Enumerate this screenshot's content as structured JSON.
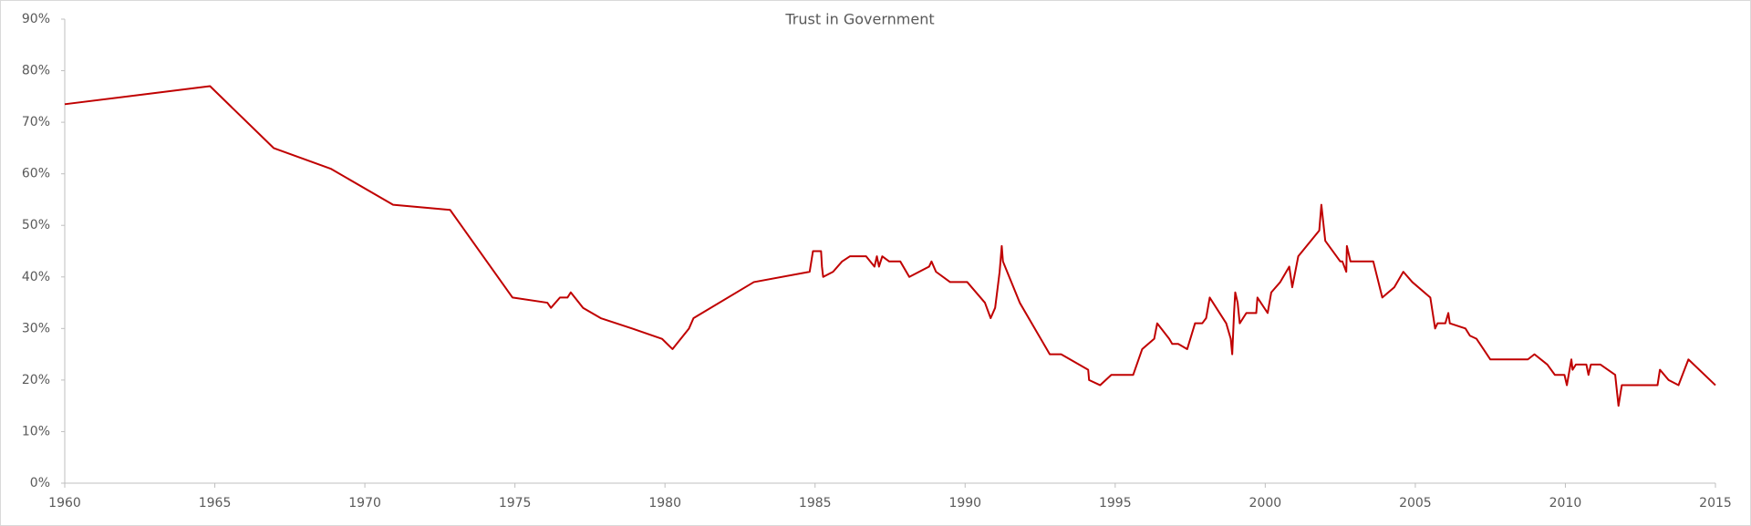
{
  "chart_data": {
    "type": "line",
    "title": "Trust in Government",
    "color": "#c00000",
    "grid": false,
    "xlim": [
      1960,
      2015
    ],
    "xticks": [
      1960,
      1965,
      1970,
      1975,
      1980,
      1985,
      1990,
      1995,
      2000,
      2005,
      2010,
      2015
    ],
    "ylim": [
      0,
      90
    ],
    "yticks": [
      {
        "value": 0,
        "label": "0%"
      },
      {
        "value": 10,
        "label": "10%"
      },
      {
        "value": 20,
        "label": "20%"
      },
      {
        "value": 30,
        "label": "30%"
      },
      {
        "value": 40,
        "label": "40%"
      },
      {
        "value": 50,
        "label": "50%"
      },
      {
        "value": 60,
        "label": "60%"
      },
      {
        "value": 70,
        "label": "70%"
      },
      {
        "value": 80,
        "label": "80%"
      },
      {
        "value": 90,
        "label": "90%"
      }
    ],
    "x": [
      1960,
      1964.84,
      1966.96,
      1968.86,
      1970.94,
      1972.84,
      1974.92,
      1976.08,
      1976.2,
      1976.5,
      1976.75,
      1976.86,
      1977.27,
      1977.86,
      1978.9,
      1979.9,
      1980.25,
      1980.8,
      1980.95,
      1982.96,
      1984.82,
      1984.93,
      1985.2,
      1985.23,
      1985.27,
      1985.6,
      1985.9,
      1986.16,
      1986.7,
      1986.98,
      1987.06,
      1987.13,
      1987.24,
      1987.47,
      1987.84,
      1988.14,
      1988.8,
      1988.88,
      1989.03,
      1989.5,
      1990.07,
      1990.66,
      1990.85,
      1991.0,
      1991.15,
      1991.22,
      1991.26,
      1991.82,
      1992.42,
      1992.82,
      1993.2,
      1994.1,
      1994.13,
      1994.5,
      1994.87,
      1995.6,
      1995.9,
      1996.3,
      1996.4,
      1996.8,
      1996.9,
      1997.1,
      1997.4,
      1997.66,
      1997.9,
      1998.03,
      1998.15,
      1998.7,
      1998.85,
      1998.9,
      1998.96,
      1999.0,
      1999.08,
      1999.15,
      1999.37,
      1999.7,
      1999.74,
      2000.08,
      2000.2,
      2000.5,
      2000.8,
      2000.9,
      2001.1,
      2001.8,
      2001.87,
      2002.0,
      2002.5,
      2002.57,
      2002.7,
      2002.72,
      2002.84,
      2003.6,
      2003.9,
      2004.3,
      2004.6,
      2004.9,
      2005.5,
      2005.66,
      2005.74,
      2006.0,
      2006.1,
      2006.15,
      2006.67,
      2006.82,
      2007.04,
      2007.5,
      2008.75,
      2008.97,
      2009.4,
      2009.65,
      2009.97,
      2010.05,
      2010.2,
      2010.24,
      2010.35,
      2010.7,
      2010.77,
      2010.85,
      2011.17,
      2011.66,
      2011.77,
      2011.88,
      2013.07,
      2013.15,
      2013.44,
      2013.77,
      2014.1,
      2015.0
    ],
    "values": [
      73.5,
      77,
      65,
      61,
      54,
      53,
      36,
      35,
      34,
      36,
      36,
      37,
      34,
      32,
      30,
      28,
      26,
      30,
      32,
      39,
      41,
      45,
      45,
      42,
      40,
      41,
      43,
      44,
      44,
      42,
      44,
      42,
      44,
      43,
      43,
      40,
      42,
      43,
      41,
      39,
      39,
      35,
      32,
      34,
      41,
      46,
      43,
      35,
      29,
      25,
      25,
      22,
      20,
      19,
      21,
      21,
      26,
      28,
      31,
      28,
      27,
      27,
      26,
      31,
      31,
      32,
      36,
      31,
      28,
      25,
      33,
      37,
      35,
      31,
      33,
      33,
      36,
      33,
      37,
      39,
      42,
      38,
      44,
      49,
      54,
      47,
      43,
      43,
      41,
      46,
      43,
      43,
      36,
      38,
      41,
      39,
      36,
      30,
      31,
      31,
      33,
      31,
      30,
      28.6,
      28,
      24,
      24,
      25,
      23,
      21,
      21,
      19,
      24,
      22,
      23,
      23,
      21,
      23,
      23,
      21,
      15,
      19,
      19,
      22,
      20,
      19,
      24,
      19
    ]
  }
}
